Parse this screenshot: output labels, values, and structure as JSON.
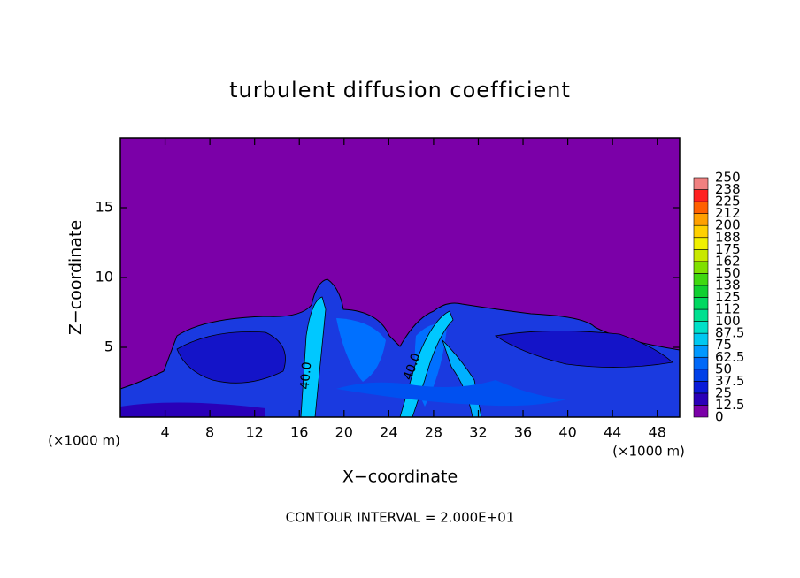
{
  "chart_data": {
    "type": "contour",
    "title": "turbulent diffusion coefficient",
    "x_label": "X−coordinate",
    "y_label": "Z−coordinate",
    "x_unit": "(×1000 m)",
    "y_unit": "(×1000 m)",
    "footer": "CONTOUR INTERVAL = 2.000E+01",
    "contour_labels": [
      "40.0",
      "40.0"
    ],
    "xlim": [
      0,
      50
    ],
    "ylim": [
      0,
      20
    ],
    "xticks": [
      4,
      8,
      12,
      16,
      20,
      24,
      28,
      32,
      36,
      40,
      44,
      48
    ],
    "yticks": [
      5,
      10,
      15
    ],
    "colorbar": {
      "levels": [
        0,
        12.5,
        25,
        37.5,
        50,
        62.5,
        75,
        87.5,
        100,
        112,
        125,
        138,
        150,
        162,
        175,
        188,
        200,
        212,
        225,
        238,
        250
      ],
      "colors": [
        "#7b00a8",
        "#2a00b8",
        "#0a1ad8",
        "#0040e8",
        "#0068f8",
        "#0098ff",
        "#00c8f0",
        "#00e0c8",
        "#00e090",
        "#00d860",
        "#10d030",
        "#40d810",
        "#80e000",
        "#c8e800",
        "#f0f000",
        "#ffd000",
        "#ffa000",
        "#ff6000",
        "#ff2020",
        "#f08080"
      ]
    }
  }
}
